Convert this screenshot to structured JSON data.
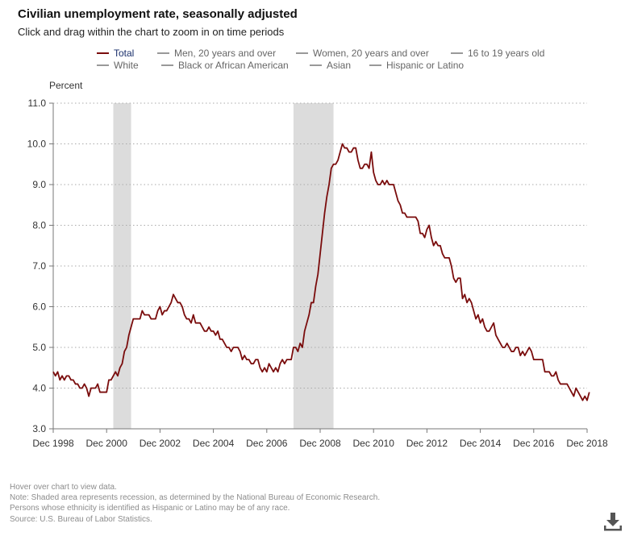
{
  "title": "Civilian unemployment rate, seasonally adjusted",
  "subtitle": "Click and drag within the chart to zoom in on time periods",
  "legend": [
    {
      "label": "Total",
      "color": "#7a0c0c",
      "active": true
    },
    {
      "label": "Men, 20 years and over",
      "color": "#999999",
      "active": false
    },
    {
      "label": "Women, 20 years and over",
      "color": "#999999",
      "active": false
    },
    {
      "label": "16 to 19 years old",
      "color": "#999999",
      "active": false
    },
    {
      "label": "White",
      "color": "#999999",
      "active": false
    },
    {
      "label": "Black or African American",
      "color": "#999999",
      "active": false
    },
    {
      "label": "Asian",
      "color": "#999999",
      "active": false
    },
    {
      "label": "Hispanic or Latino",
      "color": "#999999",
      "active": false
    }
  ],
  "notes": [
    "Hover over chart to view data.",
    "Note: Shaded area represents recession, as determined by the National Bureau of Economic Research.",
    "Persons whose ethnicity is identified as Hispanic or Latino may be of any race.",
    "Source: U.S. Bureau of Labor Statistics."
  ],
  "chart_data": {
    "type": "line",
    "title": "Civilian unemployment rate, seasonally adjusted",
    "ylabel": "Percent",
    "xlabel": "",
    "ylim": [
      3.0,
      11.0
    ],
    "yticks": [
      "3.0",
      "4.0",
      "5.0",
      "6.0",
      "7.0",
      "8.0",
      "9.0",
      "10.0",
      "11.0"
    ],
    "xticks": [
      "Dec 1998",
      "Dec 2000",
      "Dec 2002",
      "Dec 2004",
      "Dec 2006",
      "Dec 2008",
      "Dec 2010",
      "Dec 2012",
      "Dec 2014",
      "Dec 2016",
      "Dec 2018"
    ],
    "x_range": [
      "1998-12",
      "2018-12"
    ],
    "recessions": [
      {
        "start": "2001-03",
        "end": "2001-11"
      },
      {
        "start": "2007-12",
        "end": "2009-06"
      }
    ],
    "series": [
      {
        "name": "Total",
        "color": "#7a0c0c",
        "start": "1998-12",
        "values": [
          4.4,
          4.3,
          4.4,
          4.2,
          4.3,
          4.2,
          4.3,
          4.3,
          4.2,
          4.2,
          4.1,
          4.1,
          4.0,
          4.0,
          4.1,
          4.0,
          3.8,
          4.0,
          4.0,
          4.0,
          4.1,
          3.9,
          3.9,
          3.9,
          3.9,
          4.2,
          4.2,
          4.3,
          4.4,
          4.3,
          4.5,
          4.6,
          4.9,
          5.0,
          5.3,
          5.5,
          5.7,
          5.7,
          5.7,
          5.7,
          5.9,
          5.8,
          5.8,
          5.8,
          5.7,
          5.7,
          5.7,
          5.9,
          6.0,
          5.8,
          5.9,
          5.9,
          6.0,
          6.1,
          6.3,
          6.2,
          6.1,
          6.1,
          6.0,
          5.8,
          5.7,
          5.7,
          5.6,
          5.8,
          5.6,
          5.6,
          5.6,
          5.5,
          5.4,
          5.4,
          5.5,
          5.4,
          5.4,
          5.3,
          5.4,
          5.2,
          5.2,
          5.1,
          5.0,
          5.0,
          4.9,
          5.0,
          5.0,
          5.0,
          4.9,
          4.7,
          4.8,
          4.7,
          4.7,
          4.6,
          4.6,
          4.7,
          4.7,
          4.5,
          4.4,
          4.5,
          4.4,
          4.6,
          4.5,
          4.4,
          4.5,
          4.4,
          4.6,
          4.7,
          4.6,
          4.7,
          4.7,
          4.7,
          5.0,
          5.0,
          4.9,
          5.1,
          5.0,
          5.4,
          5.6,
          5.8,
          6.1,
          6.1,
          6.5,
          6.8,
          7.3,
          7.8,
          8.3,
          8.7,
          9.0,
          9.4,
          9.5,
          9.5,
          9.6,
          9.8,
          10.0,
          9.9,
          9.9,
          9.8,
          9.8,
          9.9,
          9.9,
          9.6,
          9.4,
          9.4,
          9.5,
          9.5,
          9.4,
          9.8,
          9.3,
          9.1,
          9.0,
          9.0,
          9.1,
          9.0,
          9.1,
          9.0,
          9.0,
          9.0,
          8.8,
          8.6,
          8.5,
          8.3,
          8.3,
          8.2,
          8.2,
          8.2,
          8.2,
          8.2,
          8.1,
          7.8,
          7.8,
          7.7,
          7.9,
          8.0,
          7.7,
          7.5,
          7.6,
          7.5,
          7.5,
          7.3,
          7.2,
          7.2,
          7.2,
          7.0,
          6.7,
          6.6,
          6.7,
          6.7,
          6.2,
          6.3,
          6.1,
          6.2,
          6.1,
          5.9,
          5.7,
          5.8,
          5.6,
          5.7,
          5.5,
          5.4,
          5.4,
          5.5,
          5.6,
          5.3,
          5.2,
          5.1,
          5.0,
          5.0,
          5.1,
          5.0,
          4.9,
          4.9,
          5.0,
          5.0,
          4.8,
          4.9,
          4.8,
          4.9,
          5.0,
          4.9,
          4.7,
          4.7,
          4.7,
          4.7,
          4.7,
          4.4,
          4.4,
          4.4,
          4.3,
          4.3,
          4.4,
          4.2,
          4.1,
          4.1,
          4.1,
          4.1,
          4.0,
          3.9,
          3.8,
          4.0,
          3.9,
          3.8,
          3.7,
          3.8,
          3.7,
          3.9
        ]
      }
    ]
  }
}
